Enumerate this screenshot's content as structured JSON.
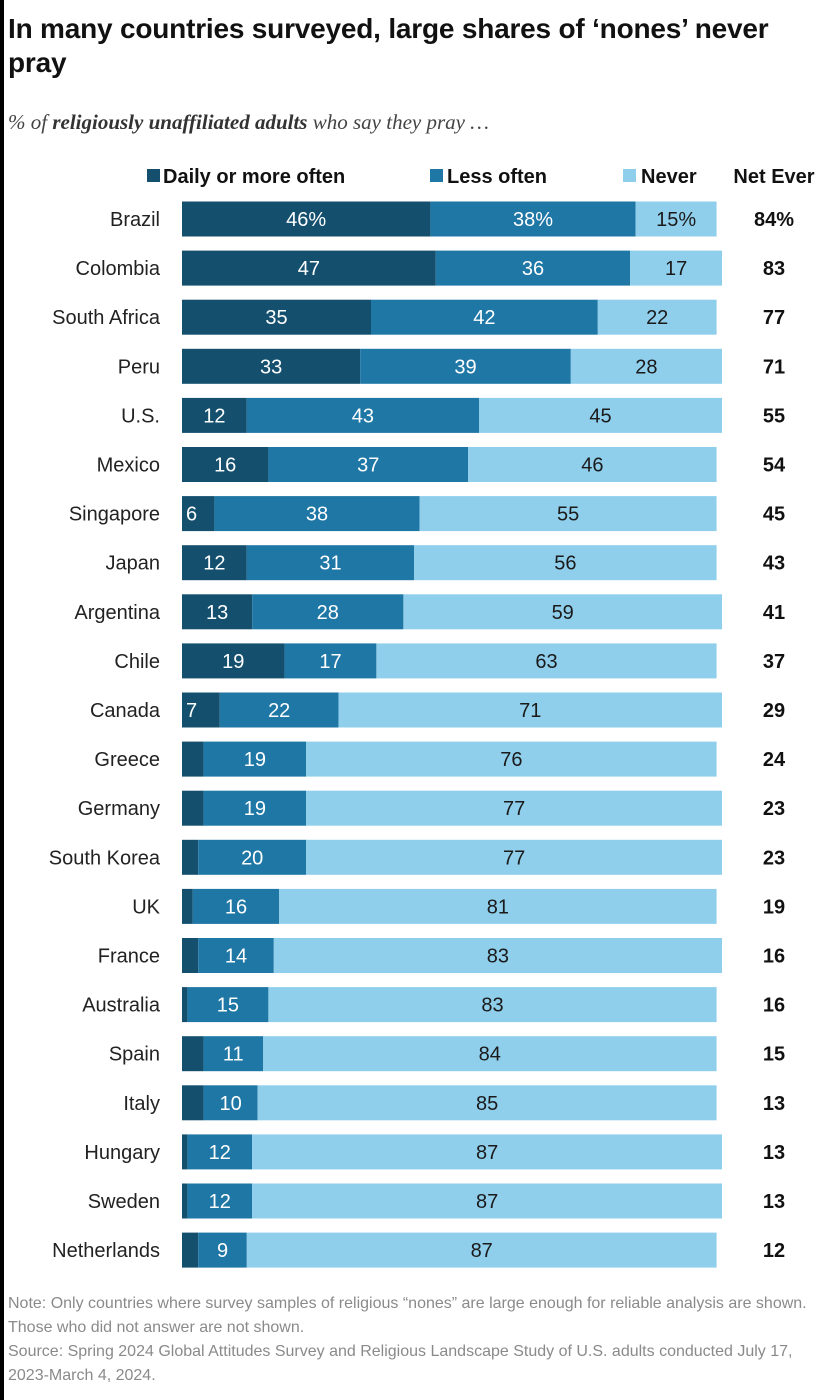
{
  "title": "In many countries surveyed, large shares of ‘nones’ never pray",
  "subtitle": {
    "prefix": "% of",
    "emphasis": "religiously unaffiliated adults",
    "suffix": "who say they pray …"
  },
  "note": "Note: Only countries where survey samples of religious “nones” are large enough for reliable analysis are shown. Those who did not answer are not shown.",
  "source": "Source: Spring 2024 Global Attitudes Survey and Religious Landscape Study of U.S. adults conducted July 17, 2023-March 4, 2024.",
  "chart_data": {
    "type": "bar",
    "orientation": "horizontal",
    "stacked": true,
    "xlim": [
      0,
      100
    ],
    "grid": false,
    "legend_position": "top",
    "net_column_header": "Net Ever",
    "categories": [
      "Brazil",
      "Colombia",
      "South Africa",
      "Peru",
      "U.S.",
      "Mexico",
      "Singapore",
      "Japan",
      "Argentina",
      "Chile",
      "Canada",
      "Greece",
      "Germany",
      "South Korea",
      "UK",
      "France",
      "Australia",
      "Spain",
      "Italy",
      "Hungary",
      "Sweden",
      "Netherlands"
    ],
    "series": [
      {
        "name": "Daily or more often",
        "color": "#14506e",
        "values": [
          46,
          47,
          35,
          33,
          12,
          16,
          6,
          12,
          13,
          19,
          7,
          4,
          4,
          3,
          2,
          3,
          1,
          4,
          4,
          1,
          1,
          3
        ],
        "labels": [
          "46%",
          "47",
          "35",
          "33",
          "12",
          "16",
          "6",
          "12",
          "13",
          "19",
          "7",
          "",
          "",
          "",
          "",
          "",
          "",
          "",
          "",
          "",
          "",
          ""
        ]
      },
      {
        "name": "Less often",
        "color": "#1f77a6",
        "values": [
          38,
          36,
          42,
          39,
          43,
          37,
          38,
          31,
          28,
          17,
          22,
          19,
          19,
          20,
          16,
          14,
          15,
          11,
          10,
          12,
          12,
          9
        ],
        "labels": [
          "38%",
          "36",
          "42",
          "39",
          "43",
          "37",
          "38",
          "31",
          "28",
          "17",
          "22",
          "19",
          "19",
          "20",
          "16",
          "14",
          "15",
          "11",
          "10",
          "12",
          "12",
          "9"
        ]
      },
      {
        "name": "Never",
        "color": "#8fcfec",
        "values": [
          15,
          17,
          22,
          28,
          45,
          46,
          55,
          56,
          59,
          63,
          71,
          76,
          77,
          77,
          81,
          83,
          83,
          84,
          85,
          87,
          87,
          87
        ],
        "labels": [
          "15%",
          "17",
          "22",
          "28",
          "45",
          "46",
          "55",
          "56",
          "59",
          "63",
          "71",
          "76",
          "77",
          "77",
          "81",
          "83",
          "83",
          "84",
          "85",
          "87",
          "87",
          "87"
        ]
      }
    ],
    "net_ever": [
      "84%",
      "83",
      "77",
      "71",
      "55",
      "54",
      "45",
      "43",
      "41",
      "37",
      "29",
      "24",
      "23",
      "23",
      "19",
      "16",
      "16",
      "15",
      "13",
      "13",
      "13",
      "12"
    ]
  }
}
